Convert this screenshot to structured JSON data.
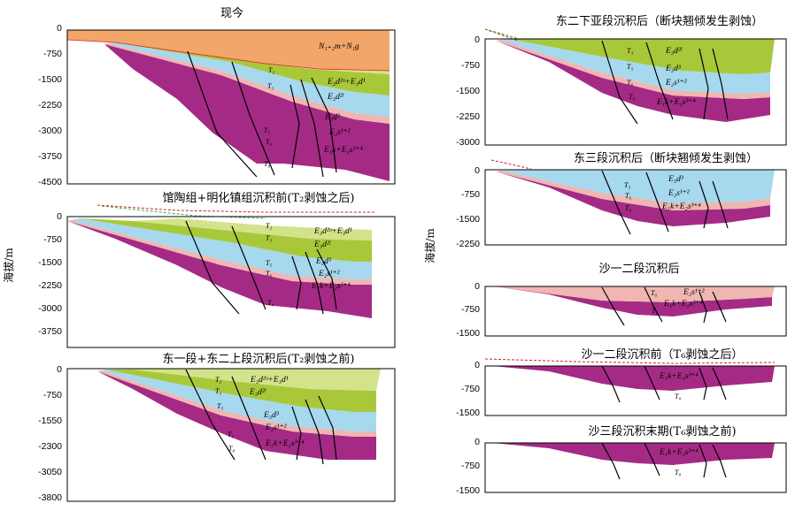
{
  "y_axis_label": "海拔/m",
  "colors": {
    "neogene": "#f2a66a",
    "ed_upper": "#d2e38a",
    "ed_lower": "#a8c83a",
    "ed3": "#a6d8ee",
    "es12": "#f0b6b2",
    "es34": "#a52a86",
    "boundary": "#1a8a8a"
  },
  "panels": [
    {
      "id": "p1",
      "title": "现今",
      "ticks": [
        "0",
        "-750",
        "-1500",
        "-2250",
        "-3000",
        "-3750",
        "-4500"
      ],
      "labels": [
        "N₁₊₂m+N₁g",
        "T₂",
        "E₃d²ᵘ+E₃d¹",
        "T₃",
        "E₃d²ˡ",
        "E₃d³",
        "T₅",
        "E₂s¹⁺²",
        "T₆",
        "E₁k+E₂s³⁺⁴",
        "T₈"
      ]
    },
    {
      "id": "p2",
      "title": "馆陶组+明化镇组沉积前(T₂剥蚀之后)",
      "ticks": [
        "0",
        "-750",
        "-1500",
        "-2250",
        "-3000",
        "-3750"
      ],
      "labels": [
        "T₂",
        "E₃d²ᵘ+E₃d¹",
        "T₃",
        "E₃d²ˡ",
        "E₃d³",
        "T₅",
        "E₂s¹⁺²",
        "T₆",
        "E₁k+E₂s³⁺⁴",
        "T₈"
      ]
    },
    {
      "id": "p3",
      "title": "东一段+东二上段沉积后(T₂剥蚀之前)",
      "ticks": [
        "0",
        "-750",
        "-1550",
        "-2300",
        "-3050",
        "-3800"
      ],
      "labels": [
        "T₂",
        "E₃d²ᵘ+E₃d¹",
        "T₃",
        "E₃d²ˡ",
        "E₃d³",
        "T₅",
        "E₂s¹⁺²",
        "T₆",
        "E₁k+E₂s³⁺⁴",
        "T₈"
      ]
    },
    {
      "id": "p4",
      "title": "东二下亚段沉积后（断块翘倾发生剥蚀）",
      "ticks": [
        "0",
        "-750",
        "-1500",
        "-2250",
        "-3000"
      ],
      "labels": [
        "E₃d²ˡ",
        "T₃",
        "E₃d³",
        "T₅",
        "E₂s¹⁺²",
        "T₆",
        "E₁k+E₂s³⁺⁴",
        "T₈"
      ]
    },
    {
      "id": "p5",
      "title": "东三段沉积后（断块翘倾发生剥蚀）",
      "ticks": [
        "0",
        "-750",
        "-1500",
        "-2250"
      ],
      "labels": [
        "E₃d³",
        "T₅",
        "E₂s¹⁺²",
        "T₆",
        "E₁k+E₂s³⁺⁴",
        "T₈"
      ]
    },
    {
      "id": "p6",
      "title": "沙一二段沉积后",
      "ticks": [
        "0",
        "-750",
        "-1500"
      ],
      "labels": [
        "E₂s¹⁺²",
        "T₆",
        "E₁k+E₂s³⁺⁴",
        "T₈"
      ]
    },
    {
      "id": "p7",
      "title": "沙一二段沉积前（T₆剥蚀之后）",
      "ticks": [
        "0",
        "-750",
        "-1500"
      ],
      "labels": [
        "E₁k+E₂s³⁺⁴",
        "T₈"
      ]
    },
    {
      "id": "p8",
      "title": "沙三段沉积末期(T₆剥蚀之前)",
      "ticks": [
        "0",
        "-750",
        "-1500"
      ],
      "labels": [
        "E₁k+E₂s³⁺⁴",
        "T₈"
      ]
    }
  ]
}
